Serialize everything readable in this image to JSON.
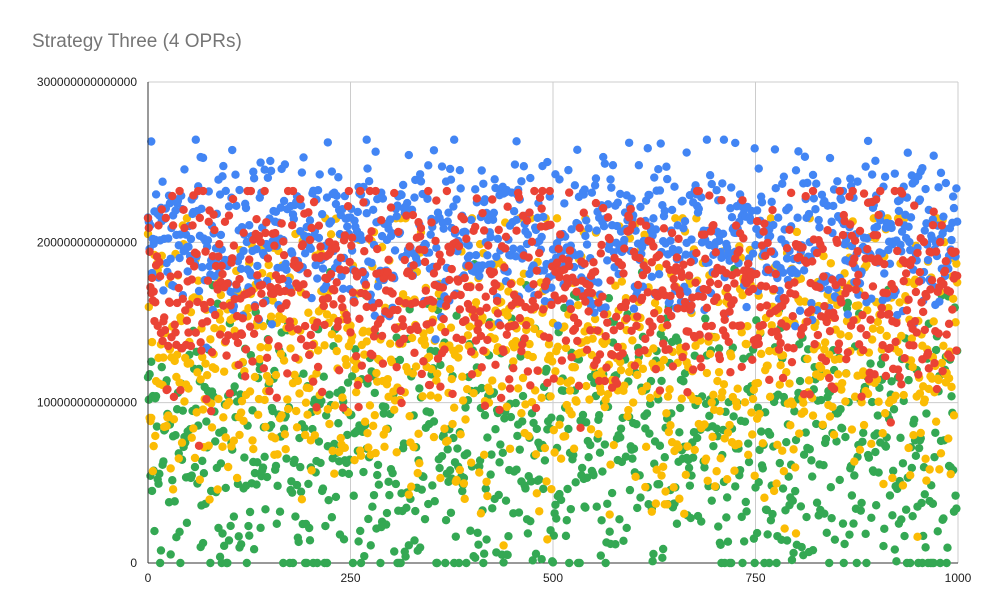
{
  "chart_data": {
    "type": "scatter",
    "title": "Strategy Three (4 OPRs)",
    "xlabel": "",
    "ylabel": "",
    "xlim": [
      0,
      1000
    ],
    "ylim": [
      0,
      300000000000000
    ],
    "x_ticks": [
      0,
      250,
      500,
      750,
      1000
    ],
    "x_tick_labels": [
      "0",
      "250",
      "500",
      "750",
      "1000"
    ],
    "y_ticks": [
      0,
      100000000000000,
      200000000000000,
      300000000000000
    ],
    "y_tick_labels": [
      "0",
      "100000000000000",
      "200000000000000",
      "300000000000000"
    ],
    "grid": true,
    "legend": "none",
    "series": [
      {
        "color": "#4285f4",
        "y_range": [
          95000000000000,
          264000000000000
        ],
        "center": 205000000000000,
        "spread": 26000000000000
      },
      {
        "color": "#ea4335",
        "y_range": [
          3000000000000,
          232000000000000
        ],
        "center": 170000000000000,
        "spread": 32000000000000
      },
      {
        "color": "#fbbc04",
        "y_range": [
          0,
          215000000000000
        ],
        "center": 130000000000000,
        "spread": 45000000000000
      },
      {
        "color": "#34a853",
        "y_range": [
          0,
          210000000000000
        ],
        "center": 70000000000000,
        "spread": 45000000000000
      }
    ],
    "highlight_points": [
      {
        "x": 270,
        "y": 264000000000000,
        "color": "#4285f4"
      },
      {
        "x": 455,
        "y": 263000000000000,
        "color": "#4285f4"
      },
      {
        "x": 725,
        "y": 262000000000000,
        "color": "#4285f4"
      },
      {
        "x": 970,
        "y": 254000000000000,
        "color": "#4285f4"
      },
      {
        "x": 665,
        "y": 256000000000000,
        "color": "#4285f4"
      },
      {
        "x": 870,
        "y": 232000000000000,
        "color": "#ea4335"
      },
      {
        "x": 520,
        "y": 231000000000000,
        "color": "#ea4335"
      }
    ]
  }
}
